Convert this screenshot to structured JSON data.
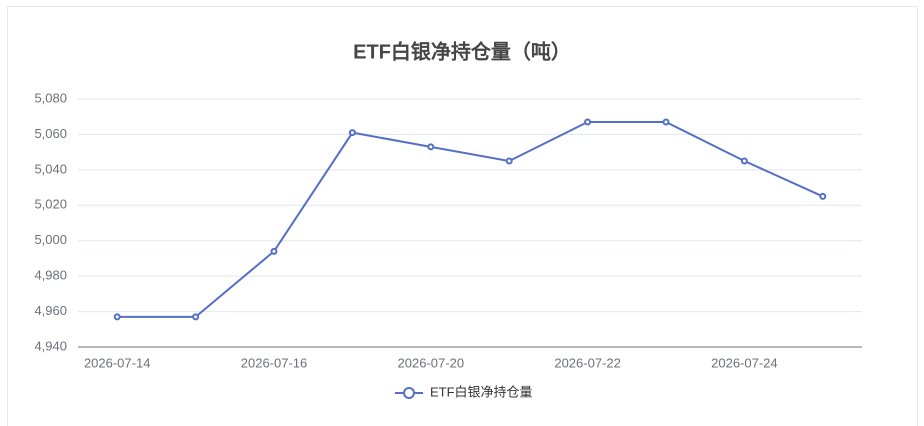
{
  "chart_data": {
    "type": "line",
    "title": "ETF白银净持仓量（吨）",
    "categories": [
      "2026-07-14",
      null,
      "2026-07-16",
      null,
      "2026-07-20",
      null,
      "2026-07-22",
      null,
      "2026-07-24",
      null
    ],
    "series": [
      {
        "name": "ETF白银净持仓量",
        "color": "#5470c6",
        "values": [
          4957,
          4957,
          4994,
          5061,
          5053,
          5045,
          5067,
          5067,
          5045,
          5025
        ]
      }
    ],
    "ylim": [
      4940,
      5080
    ],
    "yticks": [
      {
        "value": 4940,
        "label": "4,940"
      },
      {
        "value": 4960,
        "label": "4,960"
      },
      {
        "value": 4980,
        "label": "4,980"
      },
      {
        "value": 5000,
        "label": "5,000"
      },
      {
        "value": 5020,
        "label": "5,020"
      },
      {
        "value": 5040,
        "label": "5,040"
      },
      {
        "value": 5060,
        "label": "5,060"
      },
      {
        "value": 5080,
        "label": "5,080"
      }
    ],
    "grid": true
  }
}
